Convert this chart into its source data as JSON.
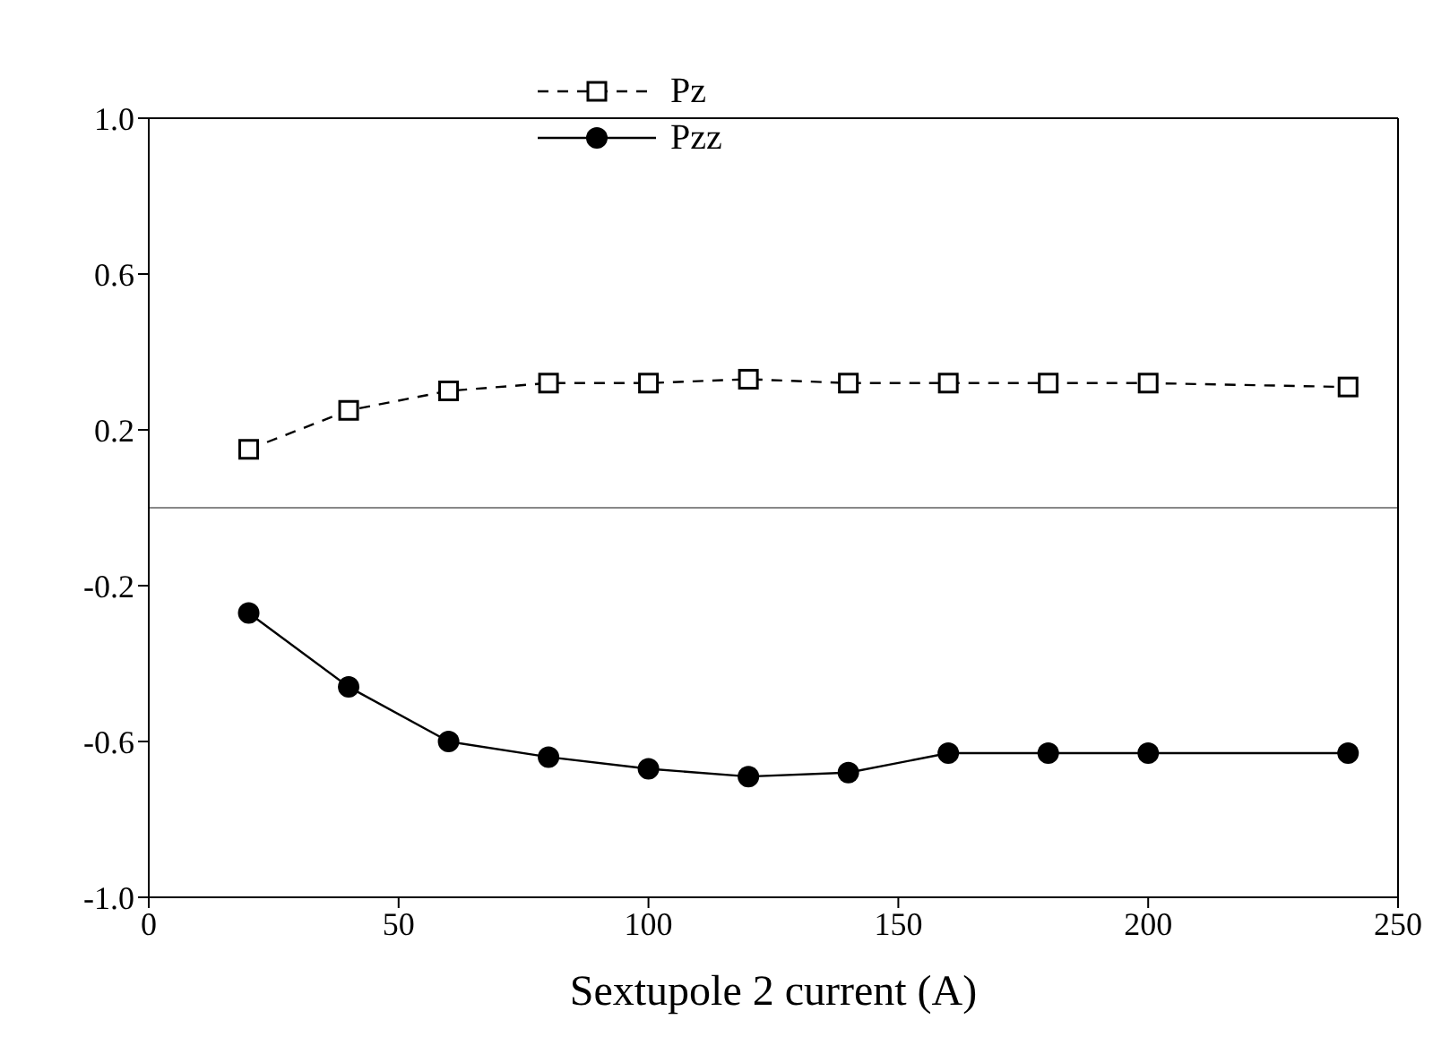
{
  "chart_data": {
    "type": "line",
    "xlabel": "Sextupole 2 current (A)",
    "x": [
      20,
      40,
      60,
      80,
      100,
      120,
      140,
      160,
      180,
      200,
      240
    ],
    "series": [
      {
        "name": "Pz",
        "color": "#000000",
        "marker": "square",
        "line_style": "dashed",
        "values": [
          0.15,
          0.25,
          0.3,
          0.32,
          0.32,
          0.33,
          0.32,
          0.32,
          0.32,
          0.32,
          0.31
        ]
      },
      {
        "name": "Pzz",
        "color": "#000000",
        "marker": "circle",
        "line_style": "solid",
        "values": [
          -0.27,
          -0.46,
          -0.6,
          -0.64,
          -0.67,
          -0.69,
          -0.68,
          -0.63,
          -0.63,
          -0.63,
          -0.63
        ]
      }
    ],
    "xlim": [
      0,
      250
    ],
    "xticks": [
      0,
      50,
      100,
      150,
      200,
      250
    ],
    "ylim": [
      -1,
      1
    ],
    "yticks": [
      {
        "value": -1,
        "label": "-1.0"
      },
      -0.6,
      -0.2,
      0.2,
      0.6,
      {
        "value": 1,
        "label": "1.0"
      }
    ],
    "ref_lines": [
      {
        "axis": "y",
        "value": 0,
        "color": "#888888"
      }
    ],
    "legend": "top",
    "grid": false
  }
}
